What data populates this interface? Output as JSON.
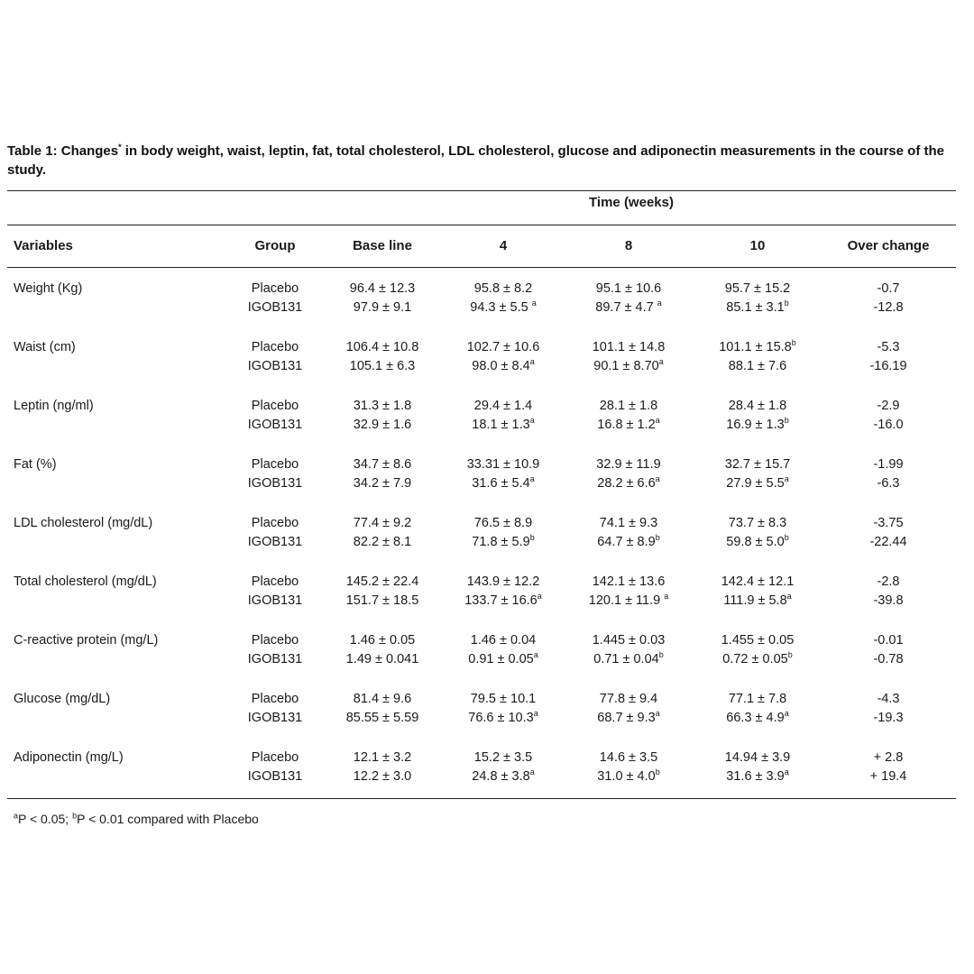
{
  "caption": {
    "label": "Table 1:",
    "text_before_mark": " Changes",
    "mark": "*",
    "text_after_mark": " in body weight, waist, leptin, fat, total cholesterol, LDL cholesterol, glucose and adiponectin measurements in the course of the study."
  },
  "header": {
    "time_group": "Time (weeks)",
    "columns": [
      "Variables",
      "Group",
      "Base line",
      "4",
      "8",
      "10",
      "Over change"
    ]
  },
  "rows": [
    {
      "variable": "Weight (Kg)",
      "groups": [
        {
          "group": "Placebo",
          "base": "96.4 ± 12.3",
          "w4": "95.8 ± 8.2",
          "w4_sup": "",
          "w8": "95.1 ± 10.6",
          "w8_sup": "",
          "w10": "95.7 ± 15.2",
          "w10_sup": "",
          "change": "-0.7"
        },
        {
          "group": "IGOB131",
          "base": "97.9 ± 9.1",
          "w4": "94.3 ± 5.5 ",
          "w4_sup": "a",
          "w8": "89.7 ± 4.7 ",
          "w8_sup": "a",
          "w10": "85.1 ± 3.1",
          "w10_sup": "b",
          "change": "-12.8"
        }
      ]
    },
    {
      "variable": "Waist (cm)",
      "groups": [
        {
          "group": "Placebo",
          "base": "106.4 ± 10.8",
          "w4": "102.7 ± 10.6",
          "w4_sup": "",
          "w8": "101.1 ± 14.8",
          "w8_sup": "",
          "w10": "101.1 ± 15.8",
          "w10_sup": "b",
          "change": "-5.3"
        },
        {
          "group": "IGOB131",
          "base": "105.1 ± 6.3",
          "w4": "98.0 ± 8.4",
          "w4_sup": "a",
          "w8": "90.1 ± 8.70",
          "w8_sup": "a",
          "w10": "88.1 ± 7.6",
          "w10_sup": "",
          "change": "-16.19"
        }
      ]
    },
    {
      "variable": "Leptin (ng/ml)",
      "groups": [
        {
          "group": "Placebo",
          "base": "31.3 ± 1.8",
          "w4": "29.4 ± 1.4",
          "w4_sup": "",
          "w8": "28.1 ± 1.8",
          "w8_sup": "",
          "w10": "28.4 ± 1.8",
          "w10_sup": "",
          "change": "-2.9"
        },
        {
          "group": "IGOB131",
          "base": "32.9 ± 1.6",
          "w4": "18.1 ± 1.3",
          "w4_sup": "a",
          "w8": "16.8 ± 1.2",
          "w8_sup": "a",
          "w10": "16.9 ± 1.3",
          "w10_sup": "b",
          "change": "-16.0"
        }
      ]
    },
    {
      "variable": "Fat (%)",
      "groups": [
        {
          "group": "Placebo",
          "base": "34.7 ± 8.6",
          "w4": "33.31 ± 10.9",
          "w4_sup": "",
          "w8": "32.9 ± 11.9",
          "w8_sup": "",
          "w10": "32.7 ± 15.7",
          "w10_sup": "",
          "change": "-1.99"
        },
        {
          "group": "IGOB131",
          "base": "34.2 ± 7.9",
          "w4": "31.6 ± 5.4",
          "w4_sup": "a",
          "w8": "28.2 ± 6.6",
          "w8_sup": "a",
          "w10": "27.9 ± 5.5",
          "w10_sup": "a",
          "change": "-6.3"
        }
      ]
    },
    {
      "variable": "LDL cholesterol (mg/dL)",
      "groups": [
        {
          "group": "Placebo",
          "base": "77.4 ± 9.2",
          "w4": "76.5 ± 8.9",
          "w4_sup": "",
          "w8": "74.1 ± 9.3",
          "w8_sup": "",
          "w10": "73.7 ± 8.3",
          "w10_sup": "",
          "change": "-3.75"
        },
        {
          "group": "IGOB131",
          "base": "82.2 ± 8.1",
          "w4": "71.8 ± 5.9",
          "w4_sup": "b",
          "w8": "64.7 ± 8.9",
          "w8_sup": "b",
          "w10": "59.8 ± 5.0",
          "w10_sup": "b",
          "change": "-22.44"
        }
      ]
    },
    {
      "variable": "Total cholesterol (mg/dL)",
      "groups": [
        {
          "group": "Placebo",
          "base": "145.2 ± 22.4",
          "w4": "143.9 ± 12.2",
          "w4_sup": "",
          "w8": "142.1 ± 13.6",
          "w8_sup": "",
          "w10": "142.4 ± 12.1",
          "w10_sup": "",
          "change": "-2.8"
        },
        {
          "group": "IGOB131",
          "base": "151.7 ± 18.5",
          "w4": "133.7 ± 16.6",
          "w4_sup": "a",
          "w8": "120.1 ± 11.9 ",
          "w8_sup": "a",
          "w10": "111.9 ± 5.8",
          "w10_sup": "a",
          "change": "-39.8"
        }
      ]
    },
    {
      "variable": "C-reactive protein (mg/L)",
      "groups": [
        {
          "group": "Placebo",
          "base": "1.46 ± 0.05",
          "w4": "1.46 ± 0.04",
          "w4_sup": "",
          "w8": "1.445 ± 0.03",
          "w8_sup": "",
          "w10": "1.455 ± 0.05",
          "w10_sup": "",
          "change": "-0.01"
        },
        {
          "group": "IGOB131",
          "base": "1.49 ± 0.041",
          "w4": "0.91 ± 0.05",
          "w4_sup": "a",
          "w8": "0.71 ± 0.04",
          "w8_sup": "b",
          "w10": "0.72 ± 0.05",
          "w10_sup": "b",
          "change": "-0.78"
        }
      ]
    },
    {
      "variable": "Glucose (mg/dL)",
      "groups": [
        {
          "group": "Placebo",
          "base": "81.4 ± 9.6",
          "w4": "79.5 ± 10.1",
          "w4_sup": "",
          "w8": "77.8 ± 9.4",
          "w8_sup": "",
          "w10": "77.1 ± 7.8",
          "w10_sup": "",
          "change": "-4.3"
        },
        {
          "group": "IGOB131",
          "base": "85.55 ± 5.59",
          "w4": "76.6 ± 10.3",
          "w4_sup": "a",
          "w8": "68.7 ± 9.3",
          "w8_sup": "a",
          "w10": "66.3 ± 4.9",
          "w10_sup": "a",
          "change": "-19.3"
        }
      ]
    },
    {
      "variable": "Adiponectin (mg/L)",
      "groups": [
        {
          "group": "Placebo",
          "base": "12.1 ± 3.2",
          "w4": "15.2 ± 3.5",
          "w4_sup": "",
          "w8": "14.6 ± 3.5",
          "w8_sup": "",
          "w10": "14.94 ± 3.9",
          "w10_sup": "",
          "change": "+ 2.8"
        },
        {
          "group": "IGOB131",
          "base": "12.2 ± 3.0",
          "w4": "24.8 ± 3.8",
          "w4_sup": "a",
          "w8": "31.0 ± 4.0",
          "w8_sup": "b",
          "w10": "31.6 ± 3.9",
          "w10_sup": "a",
          "change": "+ 19.4"
        }
      ]
    }
  ],
  "footnote": {
    "mark_a": "a",
    "text_a": "P < 0.05; ",
    "mark_b": "b",
    "text_b": "P < 0.01 compared with Placebo"
  }
}
